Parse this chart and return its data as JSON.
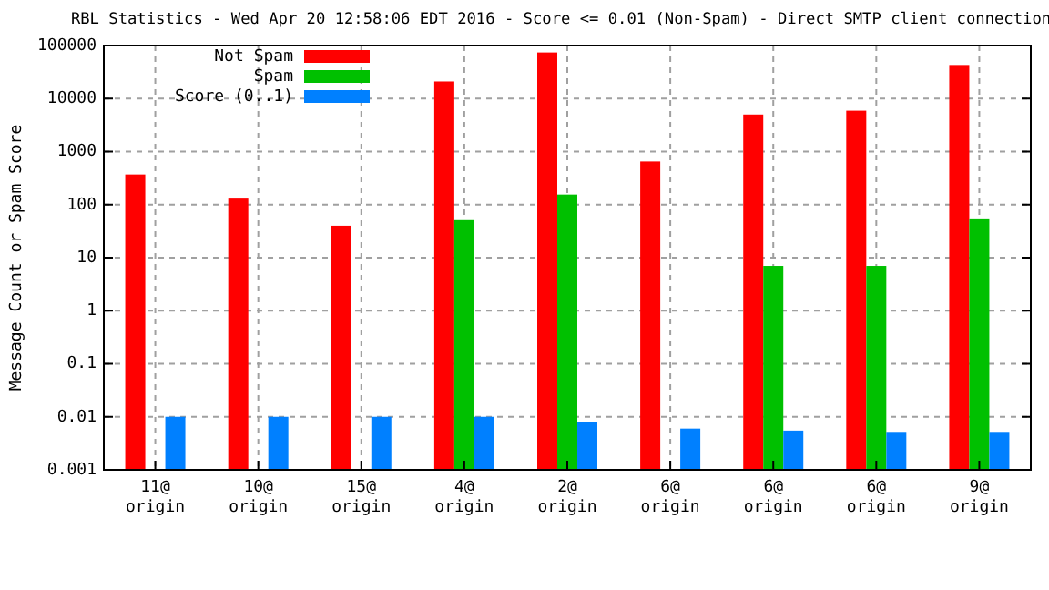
{
  "chart_data": {
    "type": "bar",
    "title": "RBL Statistics - Wed Apr 20 12:58:06 EDT 2016 - Score <= 0.01 (Non-Spam) - Direct SMTP client connection",
    "ylabel": "Message Count or Spam Score",
    "categories": [
      "11@\norigin",
      "10@\norigin",
      "15@\norigin",
      "4@\norigin",
      "2@\norigin",
      "6@\norigin",
      "6@\norigin",
      "6@\norigin",
      "9@\norigin"
    ],
    "series": [
      {
        "name": "Not Spam",
        "color": "#ff0000",
        "values": [
          370,
          130,
          40,
          21000,
          74000,
          650,
          5000,
          5900,
          43000
        ]
      },
      {
        "name": "Spam",
        "color": "#00c000",
        "values": [
          null,
          null,
          null,
          51,
          155,
          null,
          7,
          7,
          55
        ]
      },
      {
        "name": "Score (0..1)",
        "color": "#0080ff",
        "values": [
          0.01,
          0.01,
          0.01,
          0.01,
          0.008,
          0.006,
          0.0055,
          0.005,
          0.005
        ]
      }
    ],
    "log": true,
    "ylim": [
      0.001,
      100000
    ],
    "yticks": [
      0.001,
      0.01,
      0.1,
      1,
      10,
      100,
      1000,
      10000,
      100000
    ],
    "grid": true,
    "legend": "top left"
  }
}
